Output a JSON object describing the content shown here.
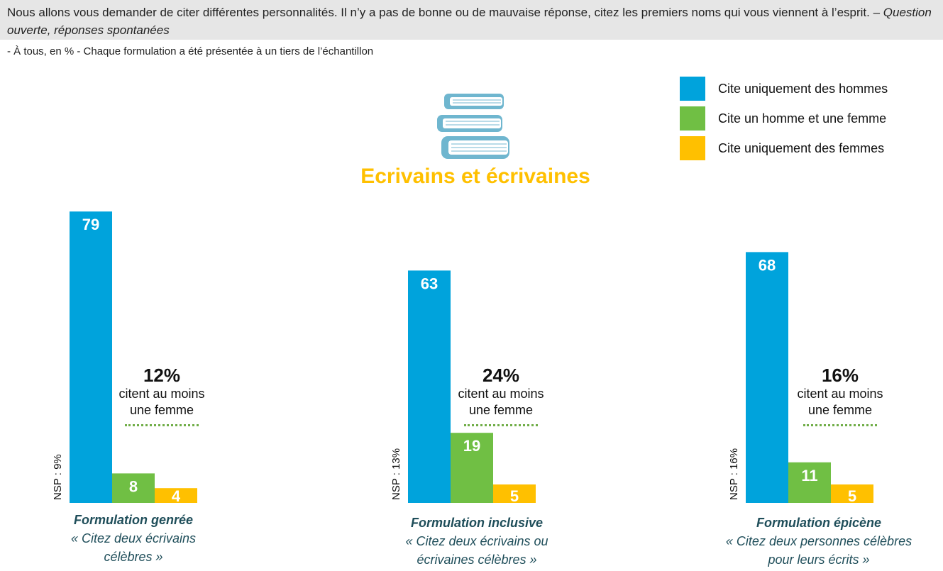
{
  "header": {
    "question": "Nous allons vous demander de citer différentes personnalités. Il n’y a pas de bonne ou de mauvaise réponse, citez les premiers noms qui vous viennent à l’esprit. –",
    "question_type": "Question ouverte, réponses spontanées",
    "base": "- À tous, en % - Chaque formulation a été présentée à un tiers de l’échantillon"
  },
  "icon": "stacked-books-icon",
  "colors": {
    "hommes": "#00a3dc",
    "mixte": "#70bf44",
    "femmes": "#ffc000",
    "title": "#ffc000",
    "formulation": "#1f4e5a"
  },
  "chart_data": {
    "type": "bar",
    "title": "Ecrivains et écrivaines",
    "legend_position": "top-right",
    "grid": false,
    "ylim": [
      0,
      100
    ],
    "series": [
      {
        "name": "Cite uniquement des hommes",
        "values": [
          79,
          63,
          68
        ]
      },
      {
        "name": "Cite un homme et une femme",
        "values": [
          8,
          19,
          11
        ]
      },
      {
        "name": "Cite uniquement des femmes",
        "values": [
          4,
          5,
          5
        ]
      }
    ],
    "groups": [
      {
        "nsp": "NSP : 9%",
        "percent": "12%",
        "percent_text_1": "citent au moins",
        "percent_text_2": "une femme",
        "formulation": "Formulation genrée",
        "quote_1": "« Citez deux écrivains",
        "quote_2": "célèbres »"
      },
      {
        "nsp": "NSP : 13%",
        "percent": "24%",
        "percent_text_1": "citent au moins",
        "percent_text_2": "une femme",
        "formulation": "Formulation inclusive",
        "quote_1": "« Citez deux écrivains ou",
        "quote_2": "écrivaines célèbres »"
      },
      {
        "nsp": "NSP : 16%",
        "percent": "16%",
        "percent_text_1": "citent au moins",
        "percent_text_2": "une femme",
        "formulation": "Formulation épicène",
        "quote_1": "« Citez deux personnes célèbres",
        "quote_2": "pour leurs écrits »"
      }
    ]
  }
}
